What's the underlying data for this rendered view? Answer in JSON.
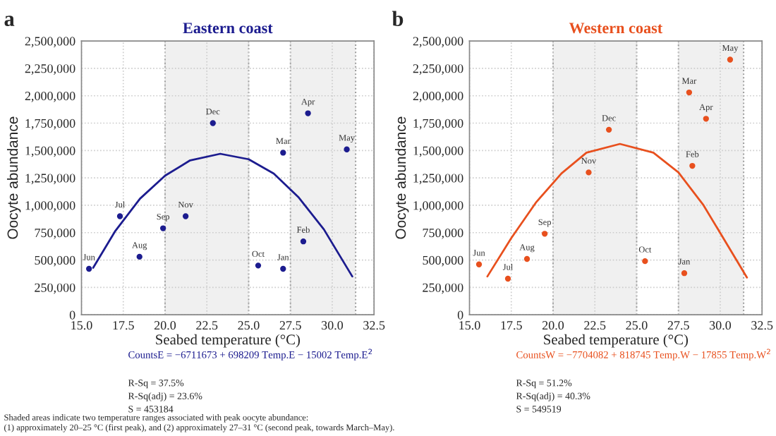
{
  "chart_data": [
    {
      "type": "scatter",
      "title": "Eastern coast",
      "xlabel": "Seabed temperature (°C)",
      "ylabel": "Oocyte abundance",
      "xlim": [
        15.0,
        32.5
      ],
      "xticks": [
        {
          "value": 15.0,
          "label": "15.0"
        },
        {
          "value": 17.5,
          "label": "17.5"
        },
        {
          "value": 20.0,
          "label": "20.0"
        },
        {
          "value": 22.5,
          "label": "22.5"
        },
        {
          "value": 25.0,
          "label": "25.0"
        },
        {
          "value": 27.5,
          "label": "27.5"
        },
        {
          "value": 30.0,
          "label": "30.0"
        },
        {
          "value": 32.5,
          "label": "32.5"
        }
      ],
      "ylim": [
        0,
        2500000
      ],
      "yticks": [
        0,
        {
          "value": 250000,
          "label": "250,000"
        },
        {
          "value": 500000,
          "label": "500,000"
        },
        {
          "value": 750000,
          "label": "750,000"
        },
        {
          "value": 1000000,
          "label": "1,000,000"
        },
        {
          "value": 1250000,
          "label": "1,250,000"
        },
        {
          "value": 1500000,
          "label": "1,500,000"
        },
        {
          "value": 1750000,
          "label": "1,750,000"
        },
        {
          "value": 2000000,
          "label": "2,000,000"
        },
        {
          "value": 2250000,
          "label": "2,250,000"
        },
        {
          "value": 2500000,
          "label": "2,500,000"
        }
      ],
      "grid": true,
      "legend": false,
      "marker": "circle",
      "series": [
        {
          "color": "#1c1c8f",
          "x": [
            15.45,
            17.3,
            18.47,
            19.88,
            21.23,
            22.86,
            25.57,
            27.06,
            27.06,
            28.27,
            28.55,
            30.87
          ],
          "values": [
            420000,
            900000,
            530000,
            790000,
            900000,
            1750000,
            450000,
            420000,
            1480000,
            670000,
            1840000,
            1510000
          ]
        },
        {
          "type": "line",
          "marker": "none",
          "color": "#1c1c8f",
          "x": [
            15.7,
            17.0,
            18.5,
            20.0,
            21.5,
            23.3,
            25.0,
            26.5,
            28.0,
            29.5,
            31.2
          ],
          "values": [
            430000,
            760000,
            1060000,
            1270000,
            1410000,
            1470000,
            1420000,
            1290000,
            1070000,
            780000,
            350000
          ]
        }
      ],
      "bands": [
        {
          "axis": "x",
          "from": 20.0,
          "to": 25.0,
          "color": "#f0f0f0"
        },
        {
          "axis": "x",
          "from": 27.5,
          "to": 31.4,
          "color": "#f0f0f0"
        }
      ],
      "annotations": [
        "a",
        "CountsE = −6711673 + 698209 Temp.E − 15002 Temp.E$^{2}$",
        "R-Sq = 37.5%",
        "R-Sq(adj) = 23.6%",
        "S = 453184",
        "Shaded areas indicate two temperature ranges associated with peak oocyte abundance:\n(1) approximately 20–25 °C (first peak), and (2) approximately 27–31 °C (second peak, towards March–May).",
        {
          "text": "Jun",
          "x": 15.45,
          "y": 420000
        },
        {
          "text": "Jul",
          "x": 17.3,
          "y": 900000
        },
        {
          "text": "Aug",
          "x": 18.47,
          "y": 530000
        },
        {
          "text": "Sep",
          "x": 19.88,
          "y": 790000
        },
        {
          "text": "Nov",
          "x": 21.23,
          "y": 900000
        },
        {
          "text": "Dec",
          "x": 22.86,
          "y": 1750000
        },
        {
          "text": "Oct",
          "x": 25.57,
          "y": 450000
        },
        {
          "text": "Jan",
          "x": 27.06,
          "y": 420000
        },
        {
          "text": "Mar",
          "x": 27.06,
          "y": 1480000
        },
        {
          "text": "Feb",
          "x": 28.27,
          "y": 670000
        },
        {
          "text": "Apr",
          "x": 28.55,
          "y": 1840000
        },
        {
          "text": "May",
          "x": 30.87,
          "y": 1510000
        }
      ]
    },
    {
      "type": "scatter",
      "title": "Western coast",
      "xlabel": "Seabed temperature (°C)",
      "ylabel": "Oocyte abundance",
      "xlim": [
        15.0,
        32.5
      ],
      "xticks": [
        {
          "value": 15.0,
          "label": "15.0"
        },
        {
          "value": 17.5,
          "label": "17.5"
        },
        {
          "value": 20.0,
          "label": "20.0"
        },
        {
          "value": 22.5,
          "label": "22.5"
        },
        {
          "value": 25.0,
          "label": "25.0"
        },
        {
          "value": 27.5,
          "label": "27.5"
        },
        {
          "value": 30.0,
          "label": "30.0"
        },
        {
          "value": 32.5,
          "label": "32.5"
        }
      ],
      "ylim": [
        0,
        2500000
      ],
      "yticks": [
        0,
        {
          "value": 250000,
          "label": "250,000"
        },
        {
          "value": 500000,
          "label": "500,000"
        },
        {
          "value": 750000,
          "label": "750,000"
        },
        {
          "value": 1000000,
          "label": "1,000,000"
        },
        {
          "value": 1250000,
          "label": "1,250,000"
        },
        {
          "value": 1500000,
          "label": "1,500,000"
        },
        {
          "value": 1750000,
          "label": "1,750,000"
        },
        {
          "value": 2000000,
          "label": "2,000,000"
        },
        {
          "value": 2250000,
          "label": "2,250,000"
        },
        {
          "value": 2500000,
          "label": "2,500,000"
        }
      ],
      "grid": true,
      "legend": false,
      "marker": "circle",
      "series": [
        {
          "color": "#e8501e",
          "x": [
            15.57,
            17.3,
            18.44,
            19.5,
            22.13,
            23.34,
            25.5,
            27.85,
            28.14,
            28.33,
            29.15,
            30.59
          ],
          "values": [
            460000,
            330000,
            510000,
            740000,
            1300000,
            1690000,
            490000,
            380000,
            2030000,
            1360000,
            1790000,
            2330000
          ]
        },
        {
          "type": "line",
          "marker": "none",
          "color": "#e8501e",
          "x": [
            16.07,
            17.5,
            19.0,
            20.5,
            22.0,
            24.0,
            26.0,
            27.5,
            29.0,
            30.5,
            31.6
          ],
          "values": [
            350000,
            700000,
            1030000,
            1290000,
            1480000,
            1560000,
            1480000,
            1300000,
            1000000,
            620000,
            340000
          ]
        }
      ],
      "bands": [
        {
          "axis": "x",
          "from": 20.0,
          "to": 25.0,
          "color": "#f0f0f0"
        },
        {
          "axis": "x",
          "from": 27.5,
          "to": 31.4,
          "color": "#f0f0f0"
        }
      ],
      "annotations": [
        "b",
        "CountsW = −7704082 + 818745 Temp.W − 17855 Temp.W$^{2}$",
        "R-Sq = 51.2%",
        "R-Sq(adj) = 40.3%",
        "S = 549519",
        {
          "text": "Jun",
          "x": 15.57,
          "y": 460000
        },
        {
          "text": "Jul",
          "x": 17.3,
          "y": 330000
        },
        {
          "text": "Aug",
          "x": 18.44,
          "y": 510000
        },
        {
          "text": "Sep",
          "x": 19.5,
          "y": 740000
        },
        {
          "text": "Nov",
          "x": 22.13,
          "y": 1300000
        },
        {
          "text": "Dec",
          "x": 23.34,
          "y": 1690000
        },
        {
          "text": "Oct",
          "x": 25.5,
          "y": 490000
        },
        {
          "text": "Jan",
          "x": 27.85,
          "y": 380000
        },
        {
          "text": "Mar",
          "x": 28.14,
          "y": 2030000
        },
        {
          "text": "Feb",
          "x": 28.33,
          "y": 1360000
        },
        {
          "text": "Apr",
          "x": 29.15,
          "y": 1790000
        },
        {
          "text": "May",
          "x": 30.59,
          "y": 2330000
        }
      ]
    }
  ]
}
